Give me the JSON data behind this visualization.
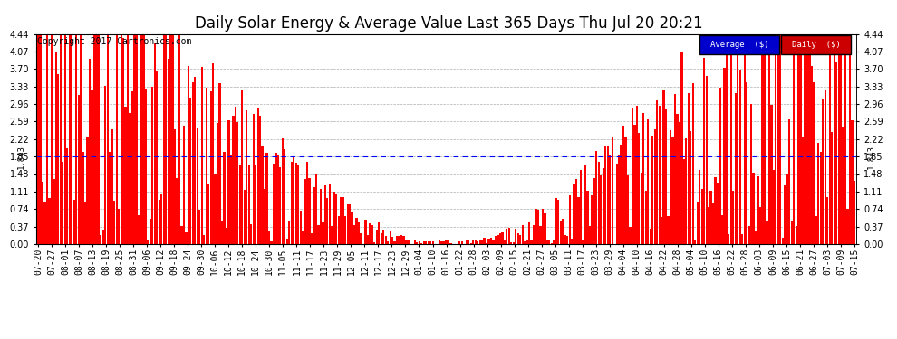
{
  "title": "Daily Solar Energy & Average Value Last 365 Days Thu Jul 20 20:21",
  "copyright": "Copyright 2017 Cartronics.com",
  "avg_value": 1.843,
  "avg_label": "1.843",
  "ylim": [
    0.0,
    4.44
  ],
  "yticks": [
    0.0,
    0.37,
    0.74,
    1.11,
    1.48,
    1.85,
    2.22,
    2.59,
    2.96,
    3.33,
    3.7,
    4.07,
    4.44
  ],
  "bar_color": "#ff0000",
  "avg_line_color": "#0000ff",
  "bg_color": "#ffffff",
  "grid_color": "#999999",
  "legend_avg_bg": "#0000cc",
  "legend_daily_bg": "#cc0000",
  "legend_text_color": "#ffffff",
  "title_fontsize": 12,
  "copyright_fontsize": 7,
  "tick_fontsize": 7,
  "x_labels": [
    "07-20",
    "07-27",
    "08-01",
    "08-07",
    "08-13",
    "08-19",
    "08-25",
    "08-31",
    "09-06",
    "09-12",
    "09-18",
    "09-24",
    "09-30",
    "10-06",
    "10-12",
    "10-18",
    "10-24",
    "10-30",
    "11-05",
    "11-11",
    "11-17",
    "11-23",
    "11-29",
    "12-05",
    "12-11",
    "12-17",
    "12-23",
    "12-29",
    "01-04",
    "01-10",
    "01-16",
    "01-22",
    "01-28",
    "02-03",
    "02-09",
    "02-15",
    "02-21",
    "02-27",
    "03-05",
    "03-11",
    "03-17",
    "03-23",
    "03-29",
    "04-04",
    "04-10",
    "04-16",
    "04-22",
    "04-28",
    "05-04",
    "05-10",
    "05-16",
    "05-22",
    "05-28",
    "06-03",
    "06-09",
    "06-15",
    "06-21",
    "06-27",
    "07-03",
    "07-09",
    "07-15"
  ],
  "n_bars": 365,
  "seed": 42
}
